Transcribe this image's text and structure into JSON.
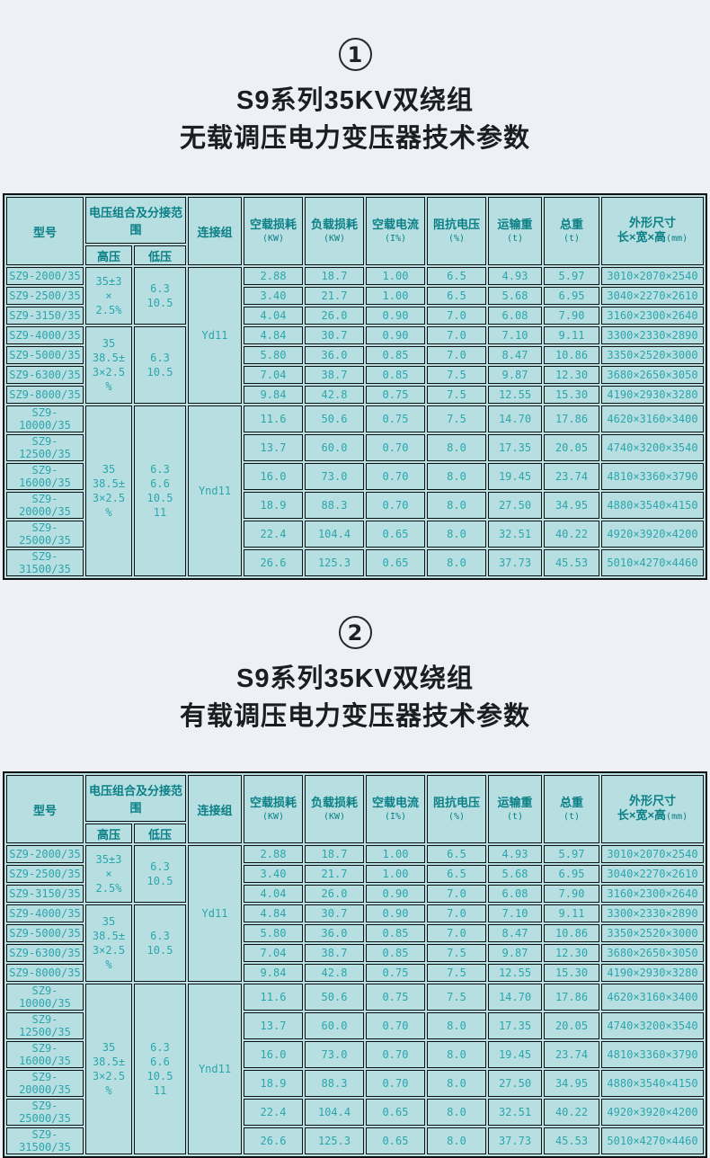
{
  "page": {
    "background": "#edf0f5",
    "table_background": "#b7dfe2",
    "border_color": "#0e1112",
    "header_text_color": "#0a8086",
    "data_text_color": "#2ba6ac",
    "title_text_color": "#1b1d20"
  },
  "sections": [
    {
      "badge": "1",
      "title_lines": [
        "S9系列35KV双绕组",
        "无载调压电力变压器技术参数"
      ],
      "table": {
        "headers": {
          "model": "型号",
          "voltage_group": "电压组合及分接范围",
          "hv": "高压",
          "lv": "低压",
          "connection": "连接组",
          "cols": [
            {
              "label": "空载损耗",
              "unit": "(KW)"
            },
            {
              "label": "负载损耗",
              "unit": "(KW)"
            },
            {
              "label": "空载电流",
              "unit": "(I%)"
            },
            {
              "label": "阻抗电压",
              "unit": "(%)"
            },
            {
              "label": "运输重",
              "unit": "(t)"
            },
            {
              "label": "总重",
              "unit": "(t)"
            },
            {
              "label": "外形尺寸",
              "sublabel": "长×宽×高",
              "unit": "(mm)"
            }
          ]
        },
        "voltage_groups": [
          {
            "span": 3,
            "hv_lines": [
              "35±3",
              "×",
              "2.5%"
            ],
            "lv_lines": [
              "6.3",
              "10.5"
            ]
          },
          {
            "span": 4,
            "hv_lines": [
              "35",
              "38.5±",
              "3×2.5",
              "%"
            ],
            "lv_lines": [
              "6.3",
              "10.5"
            ]
          },
          {
            "span": 6,
            "hv_lines": [
              "35",
              "38.5±",
              "3×2.5",
              "%"
            ],
            "lv_lines": [
              "6.3",
              "6.6",
              "10.5",
              "11"
            ]
          }
        ],
        "connection_groups": [
          {
            "span": 7,
            "label": "Yd11"
          },
          {
            "span": 6,
            "label": "Ynd11"
          }
        ],
        "rows": [
          {
            "model": "SZ9-2000/35",
            "values": [
              "2.88",
              "18.7",
              "1.00",
              "6.5",
              "4.93",
              "5.97",
              "3010×2070×2540"
            ]
          },
          {
            "model": "SZ9-2500/35",
            "values": [
              "3.40",
              "21.7",
              "1.00",
              "6.5",
              "5.68",
              "6.95",
              "3040×2270×2610"
            ]
          },
          {
            "model": "SZ9-3150/35",
            "values": [
              "4.04",
              "26.0",
              "0.90",
              "7.0",
              "6.08",
              "7.90",
              "3160×2300×2640"
            ]
          },
          {
            "model": "SZ9-4000/35",
            "values": [
              "4.84",
              "30.7",
              "0.90",
              "7.0",
              "7.10",
              "9.11",
              "3300×2330×2890"
            ]
          },
          {
            "model": "SZ9-5000/35",
            "values": [
              "5.80",
              "36.0",
              "0.85",
              "7.0",
              "8.47",
              "10.86",
              "3350×2520×3000"
            ]
          },
          {
            "model": "SZ9-6300/35",
            "values": [
              "7.04",
              "38.7",
              "0.85",
              "7.5",
              "9.87",
              "12.30",
              "3680×2650×3050"
            ]
          },
          {
            "model": "SZ9-8000/35",
            "values": [
              "9.84",
              "42.8",
              "0.75",
              "7.5",
              "12.55",
              "15.30",
              "4190×2930×3280"
            ]
          },
          {
            "model": "SZ9-10000/35",
            "values": [
              "11.6",
              "50.6",
              "0.75",
              "7.5",
              "14.70",
              "17.86",
              "4620×3160×3400"
            ]
          },
          {
            "model": "SZ9-12500/35",
            "values": [
              "13.7",
              "60.0",
              "0.70",
              "8.0",
              "17.35",
              "20.05",
              "4740×3200×3540"
            ]
          },
          {
            "model": "SZ9-16000/35",
            "values": [
              "16.0",
              "73.0",
              "0.70",
              "8.0",
              "19.45",
              "23.74",
              "4810×3360×3790"
            ]
          },
          {
            "model": "SZ9-20000/35",
            "values": [
              "18.9",
              "88.3",
              "0.70",
              "8.0",
              "27.50",
              "34.95",
              "4880×3540×4150"
            ]
          },
          {
            "model": "SZ9-25000/35",
            "values": [
              "22.4",
              "104.4",
              "0.65",
              "8.0",
              "32.51",
              "40.22",
              "4920×3920×4200"
            ]
          },
          {
            "model": "SZ9-31500/35",
            "values": [
              "26.6",
              "125.3",
              "0.65",
              "8.0",
              "37.73",
              "45.53",
              "5010×4270×4460"
            ]
          }
        ]
      }
    },
    {
      "badge": "2",
      "title_lines": [
        "S9系列35KV双绕组",
        "有载调压电力变压器技术参数"
      ],
      "table": {
        "headers": {
          "model": "型号",
          "voltage_group": "电压组合及分接范围",
          "hv": "高压",
          "lv": "低压",
          "connection": "连接组",
          "cols": [
            {
              "label": "空载损耗",
              "unit": "(KW)"
            },
            {
              "label": "负载损耗",
              "unit": "(KW)"
            },
            {
              "label": "空载电流",
              "unit": "(I%)"
            },
            {
              "label": "阻抗电压",
              "unit": "(%)"
            },
            {
              "label": "运输重",
              "unit": "(t)"
            },
            {
              "label": "总重",
              "unit": "(t)"
            },
            {
              "label": "外形尺寸",
              "sublabel": "长×宽×高",
              "unit": "(mm)"
            }
          ]
        },
        "voltage_groups": [
          {
            "span": 3,
            "hv_lines": [
              "35±3",
              "×",
              "2.5%"
            ],
            "lv_lines": [
              "6.3",
              "10.5"
            ]
          },
          {
            "span": 4,
            "hv_lines": [
              "35",
              "38.5±",
              "3×2.5",
              "%"
            ],
            "lv_lines": [
              "6.3",
              "10.5"
            ]
          },
          {
            "span": 6,
            "hv_lines": [
              "35",
              "38.5±",
              "3×2.5",
              "%"
            ],
            "lv_lines": [
              "6.3",
              "6.6",
              "10.5",
              "11"
            ]
          }
        ],
        "connection_groups": [
          {
            "span": 7,
            "label": "Yd11"
          },
          {
            "span": 6,
            "label": "Ynd11"
          }
        ],
        "rows": [
          {
            "model": "SZ9-2000/35",
            "values": [
              "2.88",
              "18.7",
              "1.00",
              "6.5",
              "4.93",
              "5.97",
              "3010×2070×2540"
            ]
          },
          {
            "model": "SZ9-2500/35",
            "values": [
              "3.40",
              "21.7",
              "1.00",
              "6.5",
              "5.68",
              "6.95",
              "3040×2270×2610"
            ]
          },
          {
            "model": "SZ9-3150/35",
            "values": [
              "4.04",
              "26.0",
              "0.90",
              "7.0",
              "6.08",
              "7.90",
              "3160×2300×2640"
            ]
          },
          {
            "model": "SZ9-4000/35",
            "values": [
              "4.84",
              "30.7",
              "0.90",
              "7.0",
              "7.10",
              "9.11",
              "3300×2330×2890"
            ]
          },
          {
            "model": "SZ9-5000/35",
            "values": [
              "5.80",
              "36.0",
              "0.85",
              "7.0",
              "8.47",
              "10.86",
              "3350×2520×3000"
            ]
          },
          {
            "model": "SZ9-6300/35",
            "values": [
              "7.04",
              "38.7",
              "0.85",
              "7.5",
              "9.87",
              "12.30",
              "3680×2650×3050"
            ]
          },
          {
            "model": "SZ9-8000/35",
            "values": [
              "9.84",
              "42.8",
              "0.75",
              "7.5",
              "12.55",
              "15.30",
              "4190×2930×3280"
            ]
          },
          {
            "model": "SZ9-10000/35",
            "values": [
              "11.6",
              "50.6",
              "0.75",
              "7.5",
              "14.70",
              "17.86",
              "4620×3160×3400"
            ]
          },
          {
            "model": "SZ9-12500/35",
            "values": [
              "13.7",
              "60.0",
              "0.70",
              "8.0",
              "17.35",
              "20.05",
              "4740×3200×3540"
            ]
          },
          {
            "model": "SZ9-16000/35",
            "values": [
              "16.0",
              "73.0",
              "0.70",
              "8.0",
              "19.45",
              "23.74",
              "4810×3360×3790"
            ]
          },
          {
            "model": "SZ9-20000/35",
            "values": [
              "18.9",
              "88.3",
              "0.70",
              "8.0",
              "27.50",
              "34.95",
              "4880×3540×4150"
            ]
          },
          {
            "model": "SZ9-25000/35",
            "values": [
              "22.4",
              "104.4",
              "0.65",
              "8.0",
              "32.51",
              "40.22",
              "4920×3920×4200"
            ]
          },
          {
            "model": "SZ9-31500/35",
            "values": [
              "26.6",
              "125.3",
              "0.65",
              "8.0",
              "37.73",
              "45.53",
              "5010×4270×4460"
            ]
          }
        ]
      }
    }
  ]
}
